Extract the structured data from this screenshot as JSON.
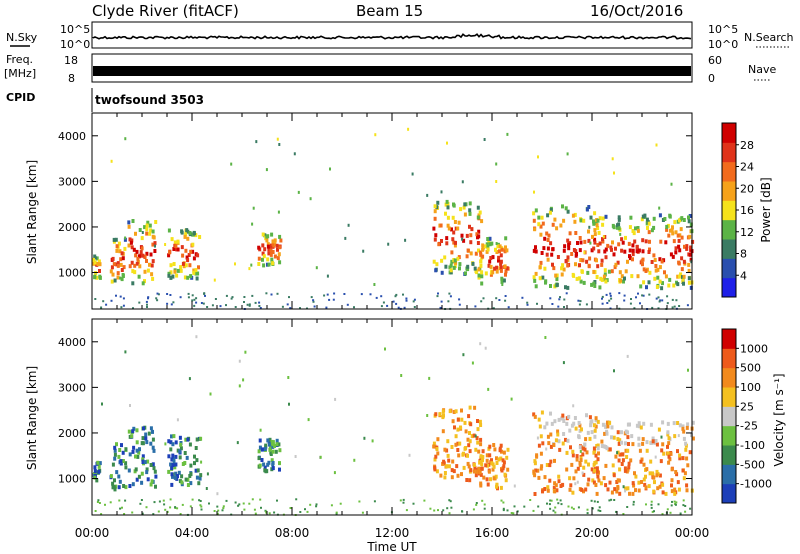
{
  "header": {
    "title": "Clyde River (fitACF)",
    "beam": "Beam 15",
    "date": "16/Oct/2016"
  },
  "top_panels": {
    "nsky_label": "N.Sky",
    "nsky_ticks": [
      "10^5",
      "10^0"
    ],
    "nsearch_label": "N.Search",
    "nsearch_ticks": [
      "10^5",
      "10^0"
    ],
    "freq_label": "Freq.",
    "freq_unit": "[MHz]",
    "freq_ticks": [
      "18",
      "8"
    ],
    "nave_label": "Nave",
    "nave_ticks": [
      "60",
      "0"
    ],
    "cpid_label": "CPID",
    "cpid_value": "twofsound 3503"
  },
  "chart_data": [
    {
      "type": "heatmap",
      "name": "power",
      "ylabel": "Slant Range [km]",
      "y_ticks": [
        1000,
        2000,
        3000,
        4000
      ],
      "ylim": [
        200,
        4500
      ],
      "x_ticks": [
        "00:00",
        "04:00",
        "08:00",
        "12:00",
        "16:00",
        "20:00",
        "00:00"
      ],
      "colorbar_label": "Power [dB]",
      "colorbar_ticks": [
        "28",
        "24",
        "20",
        "16",
        "12",
        "8",
        "4"
      ],
      "colors": [
        "#1f20e8",
        "#2a4fae",
        "#3a7b63",
        "#5bb346",
        "#f5e21b",
        "#f6a21a",
        "#f26b1d",
        "#e0331a",
        "#d00000"
      ]
    },
    {
      "type": "heatmap",
      "name": "velocity",
      "ylabel": "Slant Range [km]",
      "y_ticks": [
        1000,
        2000,
        3000,
        4000
      ],
      "ylim": [
        200,
        4500
      ],
      "x_ticks": [
        "00:00",
        "04:00",
        "08:00",
        "12:00",
        "16:00",
        "20:00",
        "00:00"
      ],
      "xlabel": "Time UT",
      "colorbar_label": "Velocity [m s⁻¹]",
      "colorbar_ticks": [
        "1000",
        "500",
        "100",
        "25",
        "-25",
        "-100",
        "-500",
        "-1000"
      ],
      "colors": [
        "#1c3fb8",
        "#2a6ea8",
        "#3b8a4c",
        "#6cc040",
        "#c8c8c8",
        "#f4c020",
        "#f28a1d",
        "#ee5a1b",
        "#d00000"
      ]
    }
  ]
}
